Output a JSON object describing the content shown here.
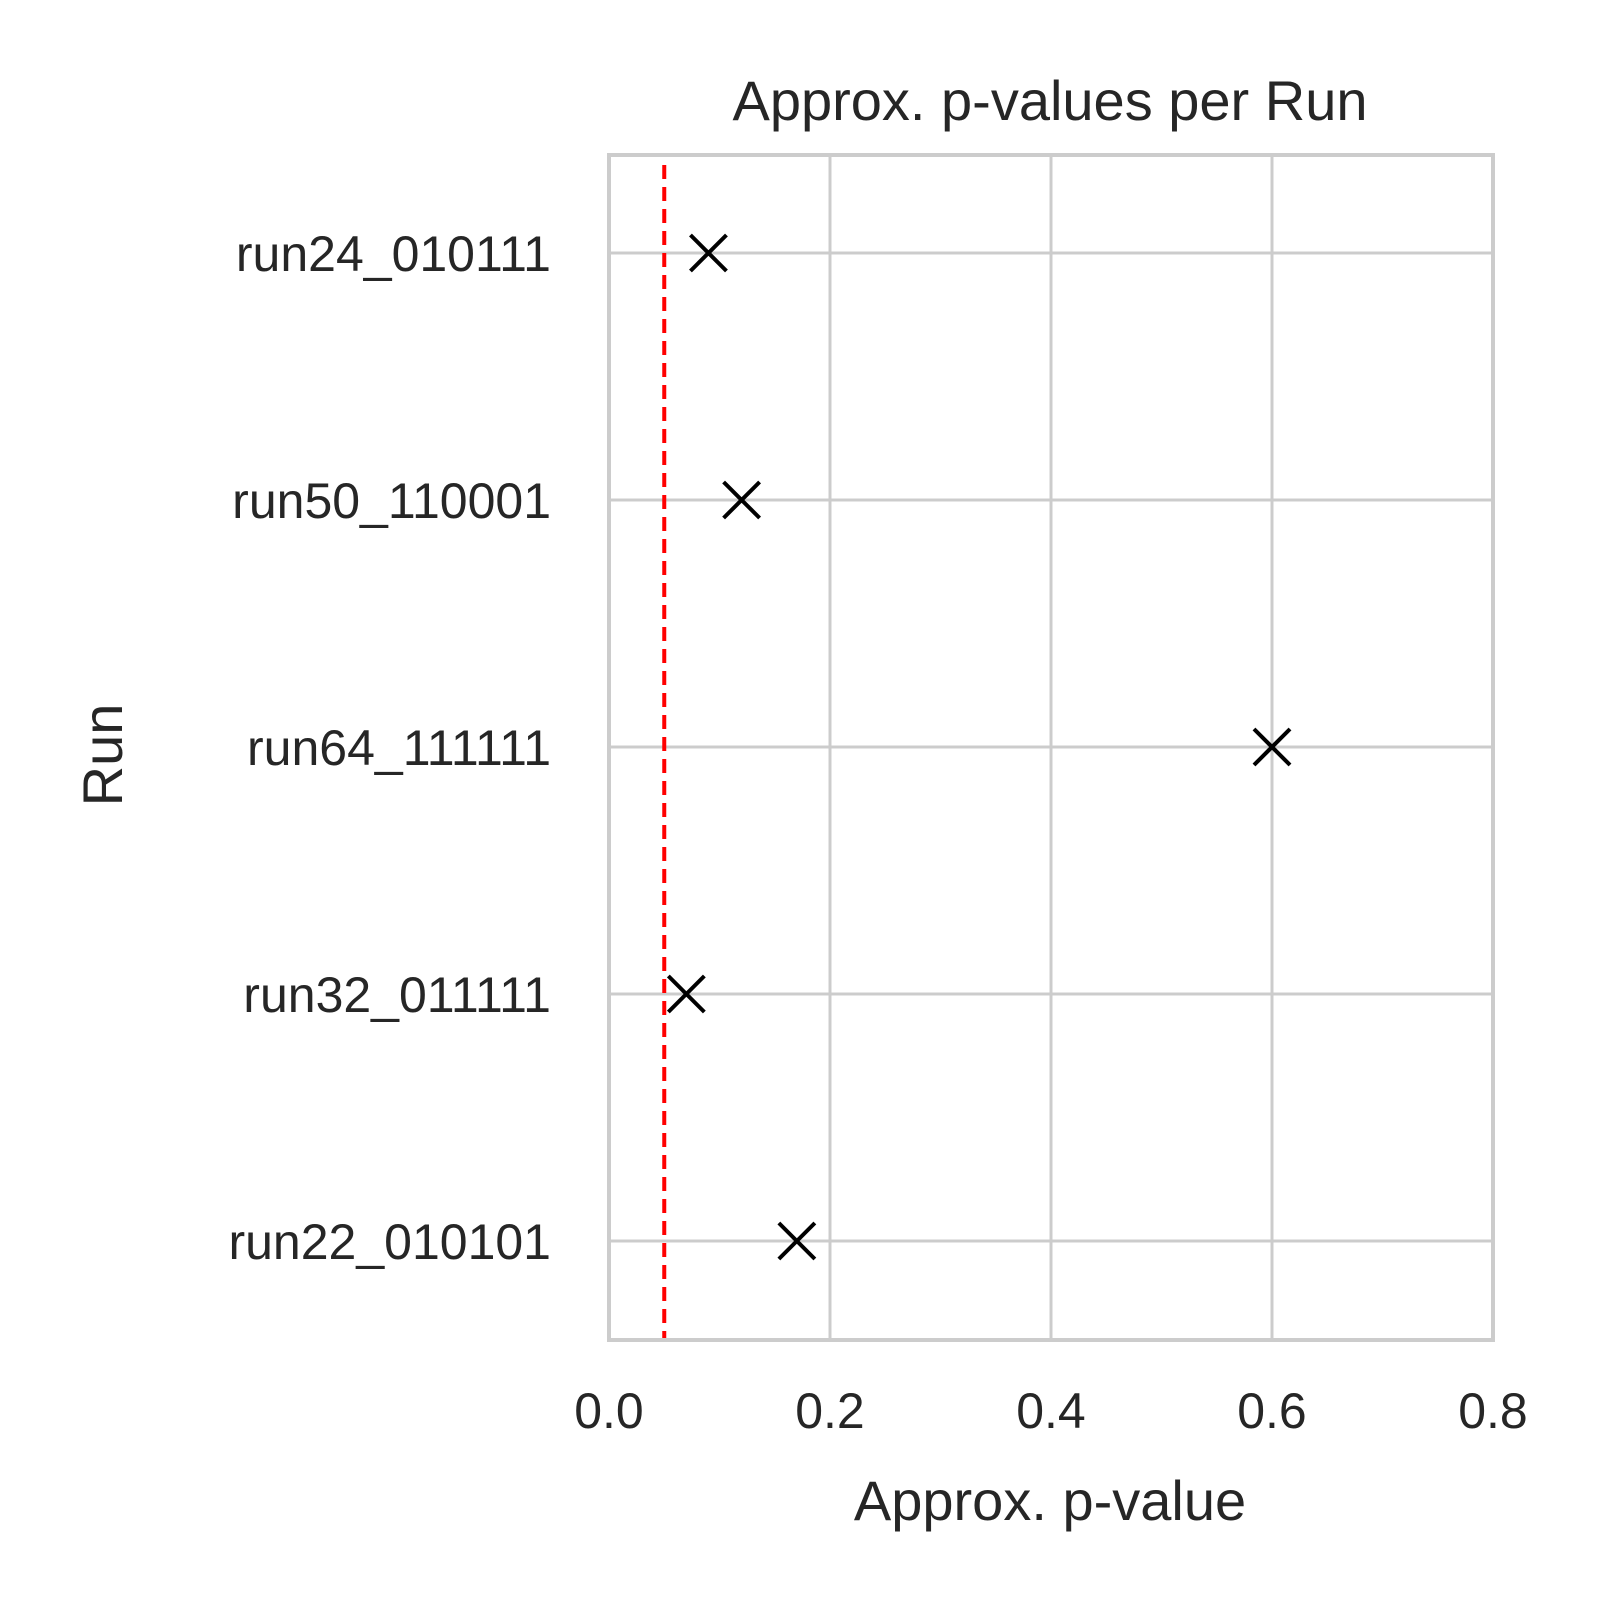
{
  "chart_data": {
    "type": "scatter",
    "title": "Approx. p-values per Run",
    "xlabel": "Approx. p-value",
    "ylabel": "Run",
    "categories": [
      "run24_010111",
      "run50_110001",
      "run64_111111",
      "run32_011111",
      "run22_010101"
    ],
    "values": [
      0.09,
      0.12,
      0.6,
      0.07,
      0.17
    ],
    "xlim": [
      0.0,
      0.8
    ],
    "xticks": [
      "0.0",
      "0.2",
      "0.4",
      "0.6",
      "0.8"
    ],
    "marker": "x",
    "marker_color": "#000000",
    "reference_line": {
      "x": 0.05,
      "style": "dashed",
      "color": "#ff0000"
    },
    "grid": true,
    "grid_color": "#cccccc"
  }
}
